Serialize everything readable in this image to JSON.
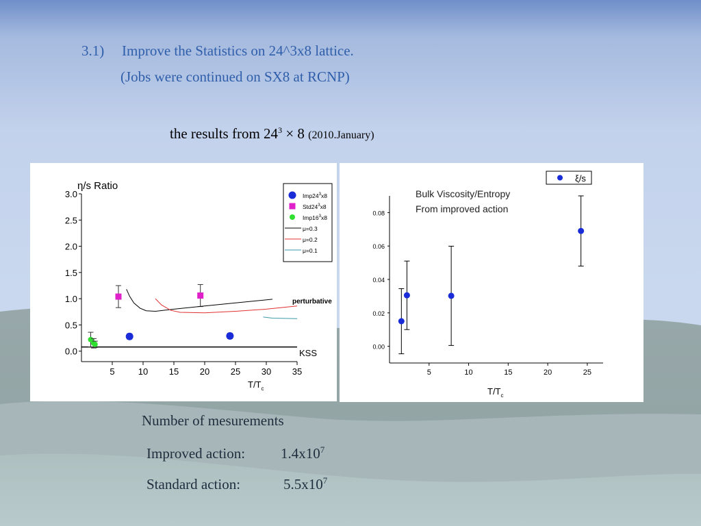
{
  "slide": {
    "heading_number": "3.1)",
    "heading_text": "Improve the Statistics on 24^3x8 lattice.",
    "subheading": "(Jobs were continued on SX8 at RCNP)",
    "results_prefix": "the results from 24",
    "results_exp": "3",
    "results_times": "× 8",
    "results_date": "(2010.January)"
  },
  "measurements": {
    "title": "Number of mesurements",
    "improved_label": "Improved action:",
    "improved_mantissa": "1.4x10",
    "improved_exp": "7",
    "standard_label": "Standard action:",
    "standard_mantissa": "5.5x10",
    "standard_exp": "7"
  },
  "chart_data": [
    {
      "type": "scatter",
      "title": "η/s Ratio",
      "xlabel": "T/T",
      "xlabel_sub": "c",
      "ylabel": "",
      "xlim": [
        0,
        35
      ],
      "ylim": [
        -0.2,
        3.0
      ],
      "xticks": [
        5,
        10,
        15,
        20,
        25,
        30,
        35
      ],
      "yticks": [
        "0.0",
        "0.5",
        "1.0",
        "1.5",
        "2.0",
        "2.5",
        "3.0"
      ],
      "legend_position": "top-right",
      "legend": [
        {
          "base": "Imp24",
          "sup": "3",
          "tail": "x8",
          "marker": "circle",
          "color": "#1a2bd8"
        },
        {
          "base": "Std24",
          "sup": "3",
          "tail": "x8",
          "marker": "square",
          "color": "#e020c8"
        },
        {
          "base": "Imp16",
          "sup": "3",
          "tail": "x8",
          "marker": "dot",
          "color": "#30e030"
        },
        {
          "base": "μ=0.3",
          "sup": "",
          "tail": "",
          "marker": "line",
          "color": "#000000"
        },
        {
          "base": "μ=0.2",
          "sup": "",
          "tail": "",
          "marker": "line",
          "color": "#e03030"
        },
        {
          "base": "μ=0.1",
          "sup": "",
          "tail": "",
          "marker": "line",
          "color": "#3a9aa8"
        }
      ],
      "series": [
        {
          "name": "Imp24³x8",
          "marker": "circle",
          "color": "#1a2bd8",
          "points": [
            {
              "x": 7.8,
              "y": 0.28,
              "err": 0.05
            },
            {
              "x": 24.1,
              "y": 0.29,
              "err": 0.05
            }
          ]
        },
        {
          "name": "Std24³x8",
          "marker": "square",
          "color": "#e020c8",
          "points": [
            {
              "x": 6.0,
              "y": 1.04,
              "err": 0.21
            },
            {
              "x": 19.3,
              "y": 1.06,
              "err": 0.21
            }
          ]
        },
        {
          "name": "Imp16³x8",
          "marker": "dot",
          "color": "#30e030",
          "points": [
            {
              "x": 1.5,
              "y": 0.22,
              "err": 0.14
            },
            {
              "x": 2.0,
              "y": 0.15,
              "err": 0.09
            },
            {
              "x": 2.2,
              "y": 0.13,
              "err": 0.06
            }
          ]
        },
        {
          "name": "μ=0.3",
          "marker": "line",
          "color": "#000000",
          "points": [
            {
              "x": 7.3,
              "y": 1.18
            },
            {
              "x": 7.8,
              "y": 1.05
            },
            {
              "x": 8.5,
              "y": 0.92
            },
            {
              "x": 9.5,
              "y": 0.82
            },
            {
              "x": 10.5,
              "y": 0.77
            },
            {
              "x": 12,
              "y": 0.76
            },
            {
              "x": 15,
              "y": 0.8
            },
            {
              "x": 20,
              "y": 0.86
            },
            {
              "x": 25,
              "y": 0.92
            },
            {
              "x": 31,
              "y": 0.99
            }
          ]
        },
        {
          "name": "μ=0.2",
          "marker": "line",
          "color": "#e03030",
          "points": [
            {
              "x": 12,
              "y": 1.0
            },
            {
              "x": 13,
              "y": 0.88
            },
            {
              "x": 14.5,
              "y": 0.78
            },
            {
              "x": 16,
              "y": 0.74
            },
            {
              "x": 20,
              "y": 0.73
            },
            {
              "x": 25,
              "y": 0.76
            },
            {
              "x": 30,
              "y": 0.8
            },
            {
              "x": 35,
              "y": 0.86
            }
          ]
        },
        {
          "name": "μ=0.1",
          "marker": "line",
          "color": "#3a9aa8",
          "points": [
            {
              "x": 29.5,
              "y": 0.65
            },
            {
              "x": 31,
              "y": 0.63
            },
            {
              "x": 35,
              "y": 0.62
            }
          ]
        }
      ],
      "reference_lines": [
        {
          "label": "KSS",
          "y": 0.08
        },
        {
          "label": "perturbative",
          "y": 0.96
        }
      ]
    },
    {
      "type": "scatter",
      "title": "Bulk Viscosity/Entropy",
      "subtitle": "From improved action",
      "xlabel": "T/T",
      "xlabel_sub": "c",
      "ylabel": "",
      "xlim": [
        0,
        27
      ],
      "ylim": [
        -0.01,
        0.09
      ],
      "xticks": [
        5,
        10,
        15,
        20,
        25
      ],
      "yticks": [
        "0.00",
        "0.02",
        "0.04",
        "0.06",
        "0.08"
      ],
      "legend_position": "top-right",
      "legend": [
        {
          "base": "ξ/s",
          "marker": "circle",
          "color": "#1a2bd8"
        }
      ],
      "series": [
        {
          "name": "ξ/s",
          "marker": "circle",
          "color": "#1a2bd8",
          "points": [
            {
              "x": 1.5,
              "y": 0.015,
              "err": 0.0195
            },
            {
              "x": 2.2,
              "y": 0.0305,
              "err": 0.0205
            },
            {
              "x": 7.8,
              "y": 0.0302,
              "err": 0.0297
            },
            {
              "x": 24.2,
              "y": 0.069,
              "err": 0.021
            }
          ]
        }
      ]
    }
  ]
}
